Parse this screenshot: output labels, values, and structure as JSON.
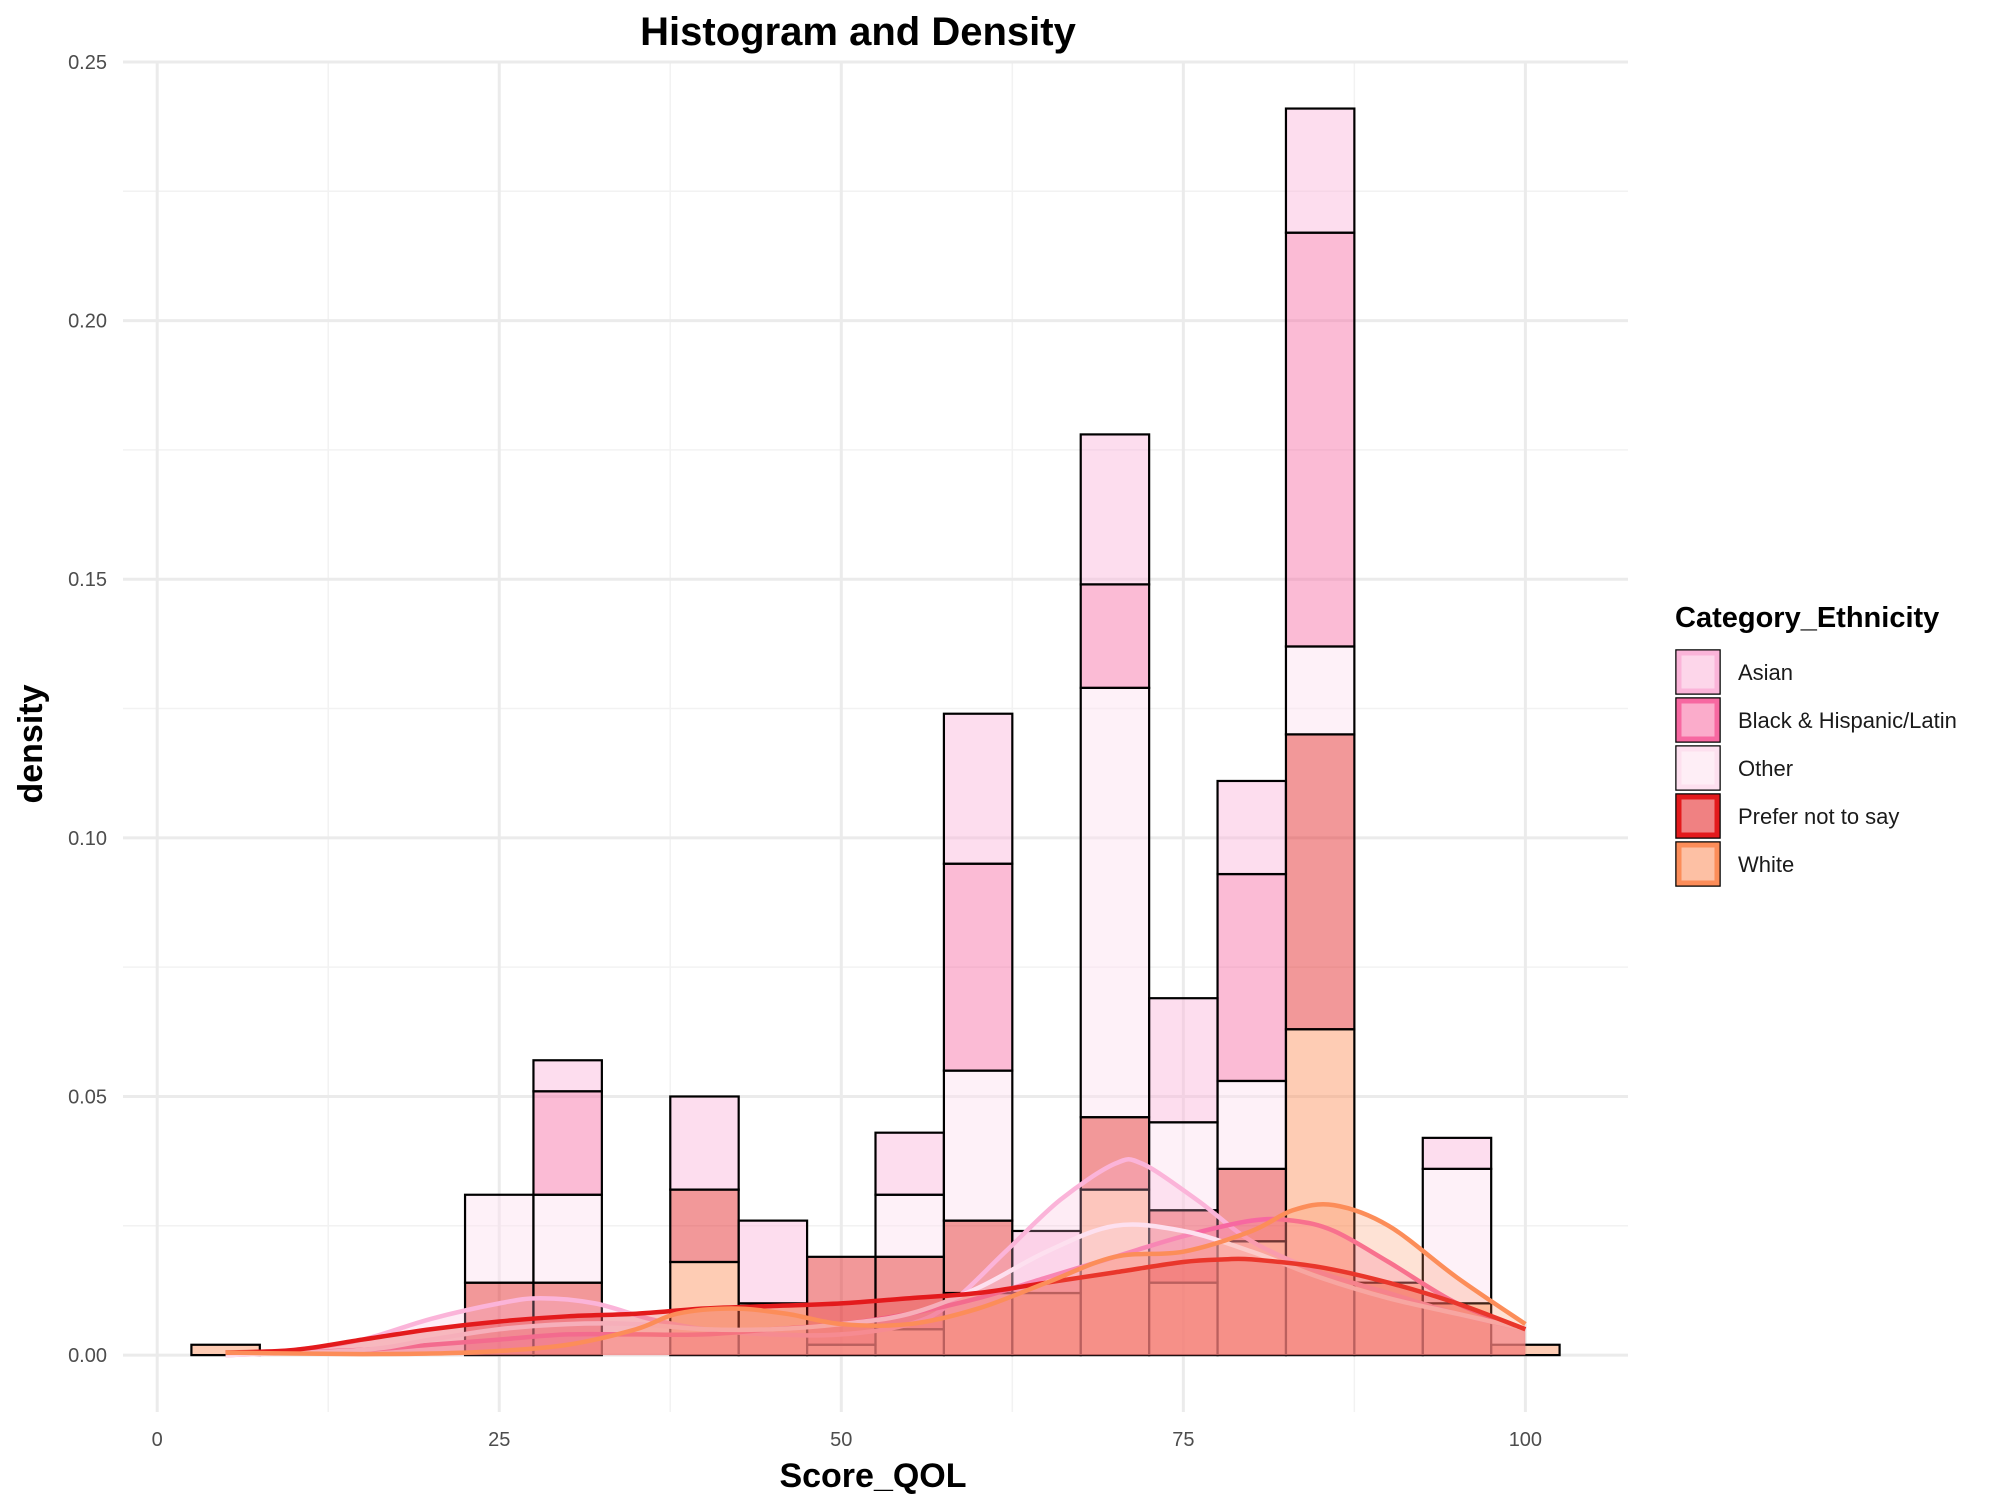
{
  "chart_data": {
    "type": "histogram",
    "title": "Histogram and Density",
    "xlabel": "Score_QOL",
    "ylabel": "density",
    "xlim": [
      -2.5,
      107.5
    ],
    "ylim": [
      -0.011,
      0.25
    ],
    "x_ticks": [
      0,
      25,
      50,
      75,
      100
    ],
    "x_tick_labels": [
      "0",
      "25",
      "50",
      "75",
      "100"
    ],
    "y_ticks": [
      0,
      0.05,
      0.1,
      0.15,
      0.2,
      0.25
    ],
    "y_tick_labels": [
      "0.00",
      "0.05",
      "0.10",
      "0.15",
      "0.20",
      "0.25"
    ],
    "grid": true,
    "bin_width": 5,
    "bin_centers": [
      5,
      10,
      15,
      20,
      25,
      30,
      35,
      40,
      45,
      50,
      55,
      60,
      65,
      70,
      75,
      80,
      85,
      90,
      95,
      100
    ],
    "legend": {
      "title": "Category_Ethnicity",
      "position": "right"
    },
    "series": [
      {
        "name": "Asian",
        "color": "#FBB4D9",
        "bar_values": [
          0,
          0,
          0,
          0,
          0,
          0.006,
          0,
          0.018,
          0.016,
          0,
          0.012,
          0.029,
          0.012,
          0.029,
          0.024,
          0.018,
          0.024,
          0.0,
          0.006,
          0.0
        ],
        "density_x": [
          5,
          10,
          15,
          20,
          25,
          28,
          32,
          36,
          40,
          45,
          50,
          55,
          58,
          62,
          66,
          70,
          72,
          76,
          80,
          85,
          90,
          95,
          100
        ],
        "density_y": [
          0.0003,
          0.001,
          0.003,
          0.007,
          0.01,
          0.011,
          0.01,
          0.007,
          0.005,
          0.004,
          0.004,
          0.006,
          0.01,
          0.02,
          0.03,
          0.037,
          0.037,
          0.03,
          0.022,
          0.016,
          0.012,
          0.008,
          0.005
        ]
      },
      {
        "name": "Black & Hispanic/Latin",
        "color": "#F768A1",
        "bar_values": [
          0,
          0,
          0,
          0,
          0,
          0.02,
          0,
          0,
          0,
          0,
          0,
          0.04,
          0,
          0.02,
          0,
          0.04,
          0.08,
          0,
          0,
          0
        ],
        "density_x": [
          5,
          15,
          20,
          25,
          30,
          35,
          40,
          45,
          50,
          55,
          60,
          65,
          70,
          75,
          80,
          83,
          86,
          90,
          95,
          100
        ],
        "density_y": [
          0.0,
          0.001,
          0.002,
          0.003,
          0.004,
          0.004,
          0.004,
          0.005,
          0.006,
          0.008,
          0.011,
          0.015,
          0.019,
          0.023,
          0.026,
          0.026,
          0.024,
          0.018,
          0.01,
          0.005
        ]
      },
      {
        "name": "Other",
        "color": "#FDE0EF",
        "bar_values": [
          0,
          0,
          0,
          0,
          0.017,
          0.017,
          0,
          0,
          0,
          0,
          0.012,
          0.029,
          0,
          0.083,
          0.017,
          0.017,
          0.017,
          0,
          0.026,
          0
        ],
        "density_x": [
          5,
          15,
          20,
          25,
          30,
          35,
          40,
          45,
          50,
          55,
          60,
          65,
          70,
          75,
          80,
          85,
          90,
          95,
          100
        ],
        "density_y": [
          0.0,
          0.001,
          0.003,
          0.005,
          0.006,
          0.006,
          0.005,
          0.005,
          0.006,
          0.008,
          0.013,
          0.02,
          0.025,
          0.024,
          0.02,
          0.015,
          0.011,
          0.008,
          0.005
        ]
      },
      {
        "name": "Prefer not to say",
        "color": "#E31A1C",
        "bar_values": [
          0,
          0,
          0,
          0,
          0.014,
          0.014,
          0,
          0.014,
          0,
          0.017,
          0.014,
          0.014,
          0,
          0.014,
          0.014,
          0.014,
          0.057,
          0,
          0,
          0
        ],
        "density_x": [
          5,
          10,
          15,
          20,
          25,
          30,
          35,
          40,
          45,
          50,
          55,
          60,
          65,
          70,
          75,
          78,
          80,
          85,
          90,
          95,
          100
        ],
        "density_y": [
          0.0005,
          0.001,
          0.003,
          0.005,
          0.0065,
          0.0075,
          0.008,
          0.009,
          0.0095,
          0.01,
          0.011,
          0.012,
          0.014,
          0.016,
          0.018,
          0.0185,
          0.0185,
          0.017,
          0.014,
          0.01,
          0.005
        ]
      },
      {
        "name": "White",
        "color": "#FC8D59",
        "bar_values": [
          0.002,
          0,
          0,
          0,
          0,
          0,
          0,
          0.018,
          0.01,
          0.002,
          0.005,
          0.012,
          0.012,
          0.032,
          0.014,
          0.022,
          0.063,
          0.014,
          0.01,
          0.002
        ],
        "density_x": [
          5,
          10,
          15,
          20,
          25,
          30,
          35,
          38,
          42,
          46,
          50,
          55,
          60,
          65,
          70,
          75,
          80,
          83,
          86,
          90,
          95,
          100
        ],
        "density_y": [
          0.0005,
          0.0003,
          0.0002,
          0.0003,
          0.0008,
          0.002,
          0.005,
          0.008,
          0.009,
          0.008,
          0.006,
          0.006,
          0.009,
          0.014,
          0.019,
          0.02,
          0.024,
          0.028,
          0.029,
          0.025,
          0.015,
          0.006
        ]
      }
    ]
  }
}
